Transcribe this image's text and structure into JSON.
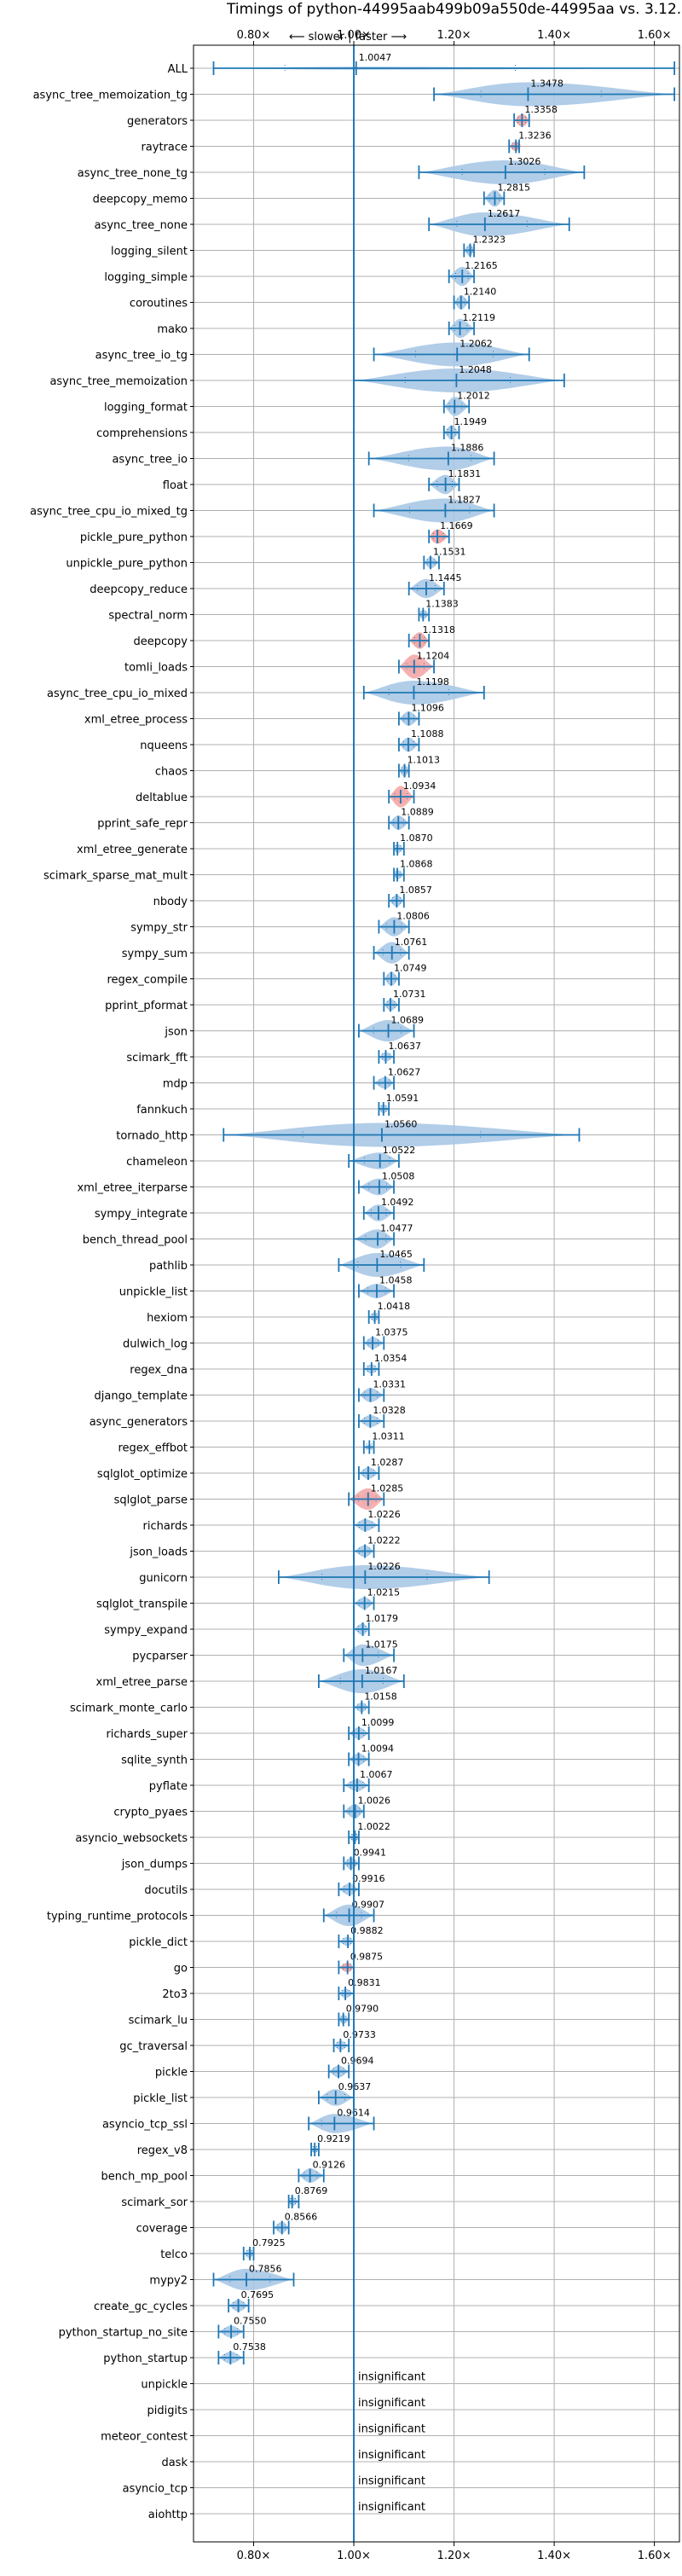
{
  "chart_data": {
    "type": "violin",
    "title": "Timings of python-44995aab499b09a550de-44995aa vs. 3.12.0",
    "subtitle": "⟵ slower | faster ⟶",
    "xlim": [
      0.68,
      1.65
    ],
    "xticks": [
      0.8,
      1.0,
      1.2,
      1.4,
      1.6
    ],
    "xtick_labels": [
      "0.80×",
      "1.00×",
      "1.20×",
      "1.40×",
      "1.60×"
    ],
    "reference_line": 1.0,
    "grid": true,
    "colors": {
      "violin": "#a9c8e6",
      "violin_highlight": "#f4a9a8",
      "line": "#1f77b4",
      "grid": "#b0b0b0"
    },
    "insignificant_label": "insignificant",
    "benchmarks": [
      {
        "name": "ALL",
        "mean": 1.0047,
        "label": "1.0047",
        "min": 0.72,
        "max": 1.64,
        "width": 0.12,
        "special": "all"
      },
      {
        "name": "async_tree_memoization_tg",
        "mean": 1.3478,
        "label": "1.3478",
        "min": 1.16,
        "max": 1.64,
        "width": 1.0
      },
      {
        "name": "generators",
        "mean": 1.3358,
        "label": "1.3358",
        "min": 1.32,
        "max": 1.35,
        "width": 0.5,
        "highlight": true
      },
      {
        "name": "raytrace",
        "mean": 1.3236,
        "label": "1.3236",
        "min": 1.31,
        "max": 1.33,
        "width": 0.4,
        "highlight": true
      },
      {
        "name": "async_tree_none_tg",
        "mean": 1.3026,
        "label": "1.3026",
        "min": 1.13,
        "max": 1.46,
        "width": 1.0
      },
      {
        "name": "deepcopy_memo",
        "mean": 1.2815,
        "label": "1.2815",
        "min": 1.26,
        "max": 1.3,
        "width": 0.7
      },
      {
        "name": "async_tree_none",
        "mean": 1.2617,
        "label": "1.2617",
        "min": 1.15,
        "max": 1.43,
        "width": 1.0
      },
      {
        "name": "logging_silent",
        "mean": 1.2323,
        "label": "1.2323",
        "min": 1.22,
        "max": 1.24,
        "width": 0.5
      },
      {
        "name": "logging_simple",
        "mean": 1.2165,
        "label": "1.2165",
        "min": 1.19,
        "max": 1.24,
        "width": 0.8
      },
      {
        "name": "coroutines",
        "mean": 1.214,
        "label": "1.2140",
        "min": 1.2,
        "max": 1.23,
        "width": 0.6
      },
      {
        "name": "mako",
        "mean": 1.2119,
        "label": "1.2119",
        "min": 1.19,
        "max": 1.24,
        "width": 0.8
      },
      {
        "name": "async_tree_io_tg",
        "mean": 1.2062,
        "label": "1.2062",
        "min": 1.04,
        "max": 1.35,
        "width": 1.0
      },
      {
        "name": "async_tree_memoization",
        "mean": 1.2048,
        "label": "1.2048",
        "min": 1.0,
        "max": 1.42,
        "width": 1.0
      },
      {
        "name": "logging_format",
        "mean": 1.2012,
        "label": "1.2012",
        "min": 1.18,
        "max": 1.23,
        "width": 0.8
      },
      {
        "name": "comprehensions",
        "mean": 1.1949,
        "label": "1.1949",
        "min": 1.18,
        "max": 1.21,
        "width": 0.6
      },
      {
        "name": "async_tree_io",
        "mean": 1.1886,
        "label": "1.1886",
        "min": 1.03,
        "max": 1.28,
        "width": 1.0
      },
      {
        "name": "float",
        "mean": 1.1831,
        "label": "1.1831",
        "min": 1.15,
        "max": 1.21,
        "width": 0.8
      },
      {
        "name": "async_tree_cpu_io_mixed_tg",
        "mean": 1.1827,
        "label": "1.1827",
        "min": 1.04,
        "max": 1.28,
        "width": 1.0
      },
      {
        "name": "pickle_pure_python",
        "mean": 1.1669,
        "label": "1.1669",
        "min": 1.15,
        "max": 1.19,
        "width": 0.6,
        "highlight": true
      },
      {
        "name": "unpickle_pure_python",
        "mean": 1.1531,
        "label": "1.1531",
        "min": 1.14,
        "max": 1.17,
        "width": 0.5
      },
      {
        "name": "deepcopy_reduce",
        "mean": 1.1445,
        "label": "1.1445",
        "min": 1.11,
        "max": 1.18,
        "width": 0.8
      },
      {
        "name": "spectral_norm",
        "mean": 1.1383,
        "label": "1.1383",
        "min": 1.13,
        "max": 1.15,
        "width": 0.4
      },
      {
        "name": "deepcopy",
        "mean": 1.1318,
        "label": "1.1318",
        "min": 1.11,
        "max": 1.15,
        "width": 0.7,
        "highlight": true
      },
      {
        "name": "tomli_loads",
        "mean": 1.1204,
        "label": "1.1204",
        "min": 1.09,
        "max": 1.16,
        "width": 1.0,
        "highlight": true
      },
      {
        "name": "async_tree_cpu_io_mixed",
        "mean": 1.1198,
        "label": "1.1198",
        "min": 1.02,
        "max": 1.26,
        "width": 1.0
      },
      {
        "name": "xml_etree_process",
        "mean": 1.1096,
        "label": "1.1096",
        "min": 1.09,
        "max": 1.13,
        "width": 0.6
      },
      {
        "name": "nqueens",
        "mean": 1.1088,
        "label": "1.1088",
        "min": 1.09,
        "max": 1.13,
        "width": 0.6
      },
      {
        "name": "chaos",
        "mean": 1.1013,
        "label": "1.1013",
        "min": 1.09,
        "max": 1.11,
        "width": 0.5
      },
      {
        "name": "deltablue",
        "mean": 1.0934,
        "label": "1.0934",
        "min": 1.07,
        "max": 1.12,
        "width": 0.9,
        "highlight": true
      },
      {
        "name": "pprint_safe_repr",
        "mean": 1.0889,
        "label": "1.0889",
        "min": 1.07,
        "max": 1.11,
        "width": 0.6
      },
      {
        "name": "xml_etree_generate",
        "mean": 1.087,
        "label": "1.0870",
        "min": 1.08,
        "max": 1.1,
        "width": 0.4
      },
      {
        "name": "scimark_sparse_mat_mult",
        "mean": 1.0868,
        "label": "1.0868",
        "min": 1.08,
        "max": 1.1,
        "width": 0.4
      },
      {
        "name": "nbody",
        "mean": 1.0857,
        "label": "1.0857",
        "min": 1.07,
        "max": 1.1,
        "width": 0.5
      },
      {
        "name": "sympy_str",
        "mean": 1.0806,
        "label": "1.0806",
        "min": 1.05,
        "max": 1.11,
        "width": 0.8
      },
      {
        "name": "sympy_sum",
        "mean": 1.0761,
        "label": "1.0761",
        "min": 1.04,
        "max": 1.11,
        "width": 0.9
      },
      {
        "name": "regex_compile",
        "mean": 1.0749,
        "label": "1.0749",
        "min": 1.06,
        "max": 1.09,
        "width": 0.6
      },
      {
        "name": "pprint_pformat",
        "mean": 1.0731,
        "label": "1.0731",
        "min": 1.06,
        "max": 1.09,
        "width": 0.5
      },
      {
        "name": "json",
        "mean": 1.0689,
        "label": "1.0689",
        "min": 1.01,
        "max": 1.12,
        "width": 0.9
      },
      {
        "name": "scimark_fft",
        "mean": 1.0637,
        "label": "1.0637",
        "min": 1.05,
        "max": 1.08,
        "width": 0.4
      },
      {
        "name": "mdp",
        "mean": 1.0627,
        "label": "1.0627",
        "min": 1.04,
        "max": 1.08,
        "width": 0.5
      },
      {
        "name": "fannkuch",
        "mean": 1.0591,
        "label": "1.0591",
        "min": 1.05,
        "max": 1.07,
        "width": 0.4
      },
      {
        "name": "tornado_http",
        "mean": 1.056,
        "label": "1.0560",
        "min": 0.74,
        "max": 1.45,
        "width": 1.0
      },
      {
        "name": "chameleon",
        "mean": 1.0522,
        "label": "1.0522",
        "min": 0.99,
        "max": 1.09,
        "width": 0.7
      },
      {
        "name": "xml_etree_iterparse",
        "mean": 1.0508,
        "label": "1.0508",
        "min": 1.01,
        "max": 1.08,
        "width": 0.7
      },
      {
        "name": "sympy_integrate",
        "mean": 1.0492,
        "label": "1.0492",
        "min": 1.02,
        "max": 1.08,
        "width": 0.7
      },
      {
        "name": "bench_thread_pool",
        "mean": 1.0477,
        "label": "1.0477",
        "min": 1.0,
        "max": 1.08,
        "width": 0.8
      },
      {
        "name": "pathlib",
        "mean": 1.0465,
        "label": "1.0465",
        "min": 0.97,
        "max": 1.14,
        "width": 1.0
      },
      {
        "name": "unpickle_list",
        "mean": 1.0458,
        "label": "1.0458",
        "min": 1.01,
        "max": 1.08,
        "width": 0.6
      },
      {
        "name": "hexiom",
        "mean": 1.0418,
        "label": "1.0418",
        "min": 1.03,
        "max": 1.05,
        "width": 0.4
      },
      {
        "name": "dulwich_log",
        "mean": 1.0375,
        "label": "1.0375",
        "min": 1.02,
        "max": 1.06,
        "width": 0.5
      },
      {
        "name": "regex_dna",
        "mean": 1.0354,
        "label": "1.0354",
        "min": 1.02,
        "max": 1.05,
        "width": 0.4
      },
      {
        "name": "django_template",
        "mean": 1.0331,
        "label": "1.0331",
        "min": 1.01,
        "max": 1.06,
        "width": 0.6
      },
      {
        "name": "async_generators",
        "mean": 1.0328,
        "label": "1.0328",
        "min": 1.01,
        "max": 1.06,
        "width": 0.5
      },
      {
        "name": "regex_effbot",
        "mean": 1.0311,
        "label": "1.0311",
        "min": 1.02,
        "max": 1.04,
        "width": 0.2
      },
      {
        "name": "sqlglot_optimize",
        "mean": 1.0287,
        "label": "1.0287",
        "min": 1.01,
        "max": 1.05,
        "width": 0.5
      },
      {
        "name": "sqlglot_parse",
        "mean": 1.0285,
        "label": "1.0285",
        "min": 0.99,
        "max": 1.06,
        "width": 0.9,
        "highlight": true
      },
      {
        "name": "richards",
        "mean": 1.0226,
        "label": "1.0226",
        "min": 1.0,
        "max": 1.05,
        "width": 0.5
      },
      {
        "name": "json_loads",
        "mean": 1.0222,
        "label": "1.0222",
        "min": 1.0,
        "max": 1.04,
        "width": 0.5
      },
      {
        "name": "gunicorn",
        "mean": 1.0226,
        "label": "1.0226",
        "min": 0.85,
        "max": 1.27,
        "width": 1.0
      },
      {
        "name": "sqlglot_transpile",
        "mean": 1.0215,
        "label": "1.0215",
        "min": 1.0,
        "max": 1.04,
        "width": 0.5
      },
      {
        "name": "sympy_expand",
        "mean": 1.0179,
        "label": "1.0179",
        "min": 1.0,
        "max": 1.03,
        "width": 0.5
      },
      {
        "name": "pycparser",
        "mean": 1.0175,
        "label": "1.0175",
        "min": 0.98,
        "max": 1.08,
        "width": 0.9
      },
      {
        "name": "xml_etree_parse",
        "mean": 1.0167,
        "label": "1.0167",
        "min": 0.93,
        "max": 1.1,
        "width": 1.0
      },
      {
        "name": "scimark_monte_carlo",
        "mean": 1.0158,
        "label": "1.0158",
        "min": 1.0,
        "max": 1.03,
        "width": 0.4
      },
      {
        "name": "richards_super",
        "mean": 1.0099,
        "label": "1.0099",
        "min": 0.99,
        "max": 1.03,
        "width": 0.5
      },
      {
        "name": "sqlite_synth",
        "mean": 1.0094,
        "label": "1.0094",
        "min": 0.99,
        "max": 1.03,
        "width": 0.5
      },
      {
        "name": "pyflate",
        "mean": 1.0067,
        "label": "1.0067",
        "min": 0.98,
        "max": 1.03,
        "width": 0.5
      },
      {
        "name": "crypto_pyaes",
        "mean": 1.0026,
        "label": "1.0026",
        "min": 0.98,
        "max": 1.02,
        "width": 0.6
      },
      {
        "name": "asyncio_websockets",
        "mean": 1.0022,
        "label": "1.0022",
        "min": 0.99,
        "max": 1.01,
        "width": 0.4
      },
      {
        "name": "json_dumps",
        "mean": 0.9941,
        "label": "0.9941",
        "min": 0.98,
        "max": 1.01,
        "width": 0.5
      },
      {
        "name": "docutils",
        "mean": 0.9916,
        "label": "0.9916",
        "min": 0.97,
        "max": 1.01,
        "width": 0.5
      },
      {
        "name": "typing_runtime_protocols",
        "mean": 0.9907,
        "label": "0.9907",
        "min": 0.94,
        "max": 1.04,
        "width": 0.9
      },
      {
        "name": "pickle_dict",
        "mean": 0.9882,
        "label": "0.9882",
        "min": 0.97,
        "max": 1.0,
        "width": 0.4
      },
      {
        "name": "go",
        "mean": 0.9875,
        "label": "0.9875",
        "min": 0.97,
        "max": 1.0,
        "width": 0.4,
        "highlight": true
      },
      {
        "name": "2to3",
        "mean": 0.9831,
        "label": "0.9831",
        "min": 0.97,
        "max": 1.0,
        "width": 0.4
      },
      {
        "name": "scimark_lu",
        "mean": 0.979,
        "label": "0.9790",
        "min": 0.97,
        "max": 0.99,
        "width": 0.4
      },
      {
        "name": "gc_traversal",
        "mean": 0.9733,
        "label": "0.9733",
        "min": 0.96,
        "max": 0.99,
        "width": 0.4
      },
      {
        "name": "pickle",
        "mean": 0.9694,
        "label": "0.9694",
        "min": 0.95,
        "max": 0.99,
        "width": 0.5
      },
      {
        "name": "pickle_list",
        "mean": 0.9637,
        "label": "0.9637",
        "min": 0.93,
        "max": 1.0,
        "width": 0.7
      },
      {
        "name": "asyncio_tcp_ssl",
        "mean": 0.9614,
        "label": "0.9614",
        "min": 0.91,
        "max": 1.04,
        "width": 0.8
      },
      {
        "name": "regex_v8",
        "mean": 0.9219,
        "label": "0.9219",
        "min": 0.915,
        "max": 0.93,
        "width": 0.3
      },
      {
        "name": "bench_mp_pool",
        "mean": 0.9126,
        "label": "0.9126",
        "min": 0.89,
        "max": 0.94,
        "width": 0.6
      },
      {
        "name": "scimark_sor",
        "mean": 0.8769,
        "label": "0.8769",
        "min": 0.87,
        "max": 0.89,
        "width": 0.4
      },
      {
        "name": "coverage",
        "mean": 0.8566,
        "label": "0.8566",
        "min": 0.84,
        "max": 0.87,
        "width": 0.5
      },
      {
        "name": "telco",
        "mean": 0.7925,
        "label": "0.7925",
        "min": 0.78,
        "max": 0.8,
        "width": 0.4
      },
      {
        "name": "mypy2",
        "mean": 0.7856,
        "label": "0.7856",
        "min": 0.72,
        "max": 0.88,
        "width": 0.9
      },
      {
        "name": "create_gc_cycles",
        "mean": 0.7695,
        "label": "0.7695",
        "min": 0.75,
        "max": 0.79,
        "width": 0.5
      },
      {
        "name": "python_startup_no_site",
        "mean": 0.755,
        "label": "0.7550",
        "min": 0.73,
        "max": 0.78,
        "width": 0.5
      },
      {
        "name": "python_startup",
        "mean": 0.7538,
        "label": "0.7538",
        "min": 0.73,
        "max": 0.78,
        "width": 0.5
      },
      {
        "name": "unpickle",
        "insignificant": true
      },
      {
        "name": "pidigits",
        "insignificant": true
      },
      {
        "name": "meteor_contest",
        "insignificant": true
      },
      {
        "name": "dask",
        "insignificant": true
      },
      {
        "name": "asyncio_tcp",
        "insignificant": true
      },
      {
        "name": "aiohttp",
        "insignificant": true
      }
    ]
  }
}
